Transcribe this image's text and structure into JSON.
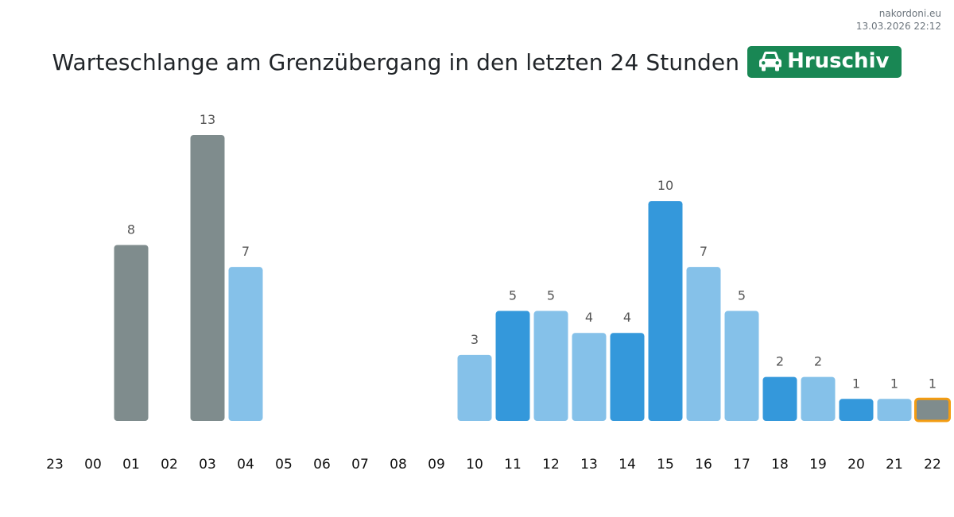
{
  "source": {
    "site": "nakordoni.eu",
    "timestamp": "13.03.2026 22:12"
  },
  "header": {
    "title": "Warteschlange am Grenzübergang in den letzten 24 Stunden",
    "badge_label": "Hruschiv",
    "badge_icon": "car-icon"
  },
  "colors": {
    "past": "#7f8c8d",
    "light": "#85c1e9",
    "dark": "#3498db",
    "highlight_border": "#f39c12",
    "badge": "#198754"
  },
  "chart_data": {
    "type": "bar",
    "title": "Warteschlange am Grenzübergang in den letzten 24 Stunden",
    "xlabel": "",
    "ylabel": "",
    "ylim": [
      0,
      13
    ],
    "grid": false,
    "categories": [
      "23",
      "00",
      "01",
      "02",
      "03",
      "04",
      "05",
      "06",
      "07",
      "08",
      "09",
      "10",
      "11",
      "12",
      "13",
      "14",
      "15",
      "16",
      "17",
      "18",
      "19",
      "20",
      "21",
      "22"
    ],
    "values": [
      null,
      null,
      8,
      null,
      13,
      7,
      null,
      null,
      null,
      null,
      null,
      3,
      5,
      5,
      4,
      4,
      10,
      7,
      5,
      2,
      2,
      1,
      1,
      1
    ],
    "bar_colors": [
      "past",
      "past",
      "past",
      "past",
      "past",
      "light",
      "light",
      "light",
      "light",
      "light",
      "light",
      "light",
      "dark",
      "light",
      "light",
      "dark",
      "dark",
      "light",
      "light",
      "dark",
      "light",
      "dark",
      "light",
      "past"
    ],
    "highlighted_index": 23
  }
}
